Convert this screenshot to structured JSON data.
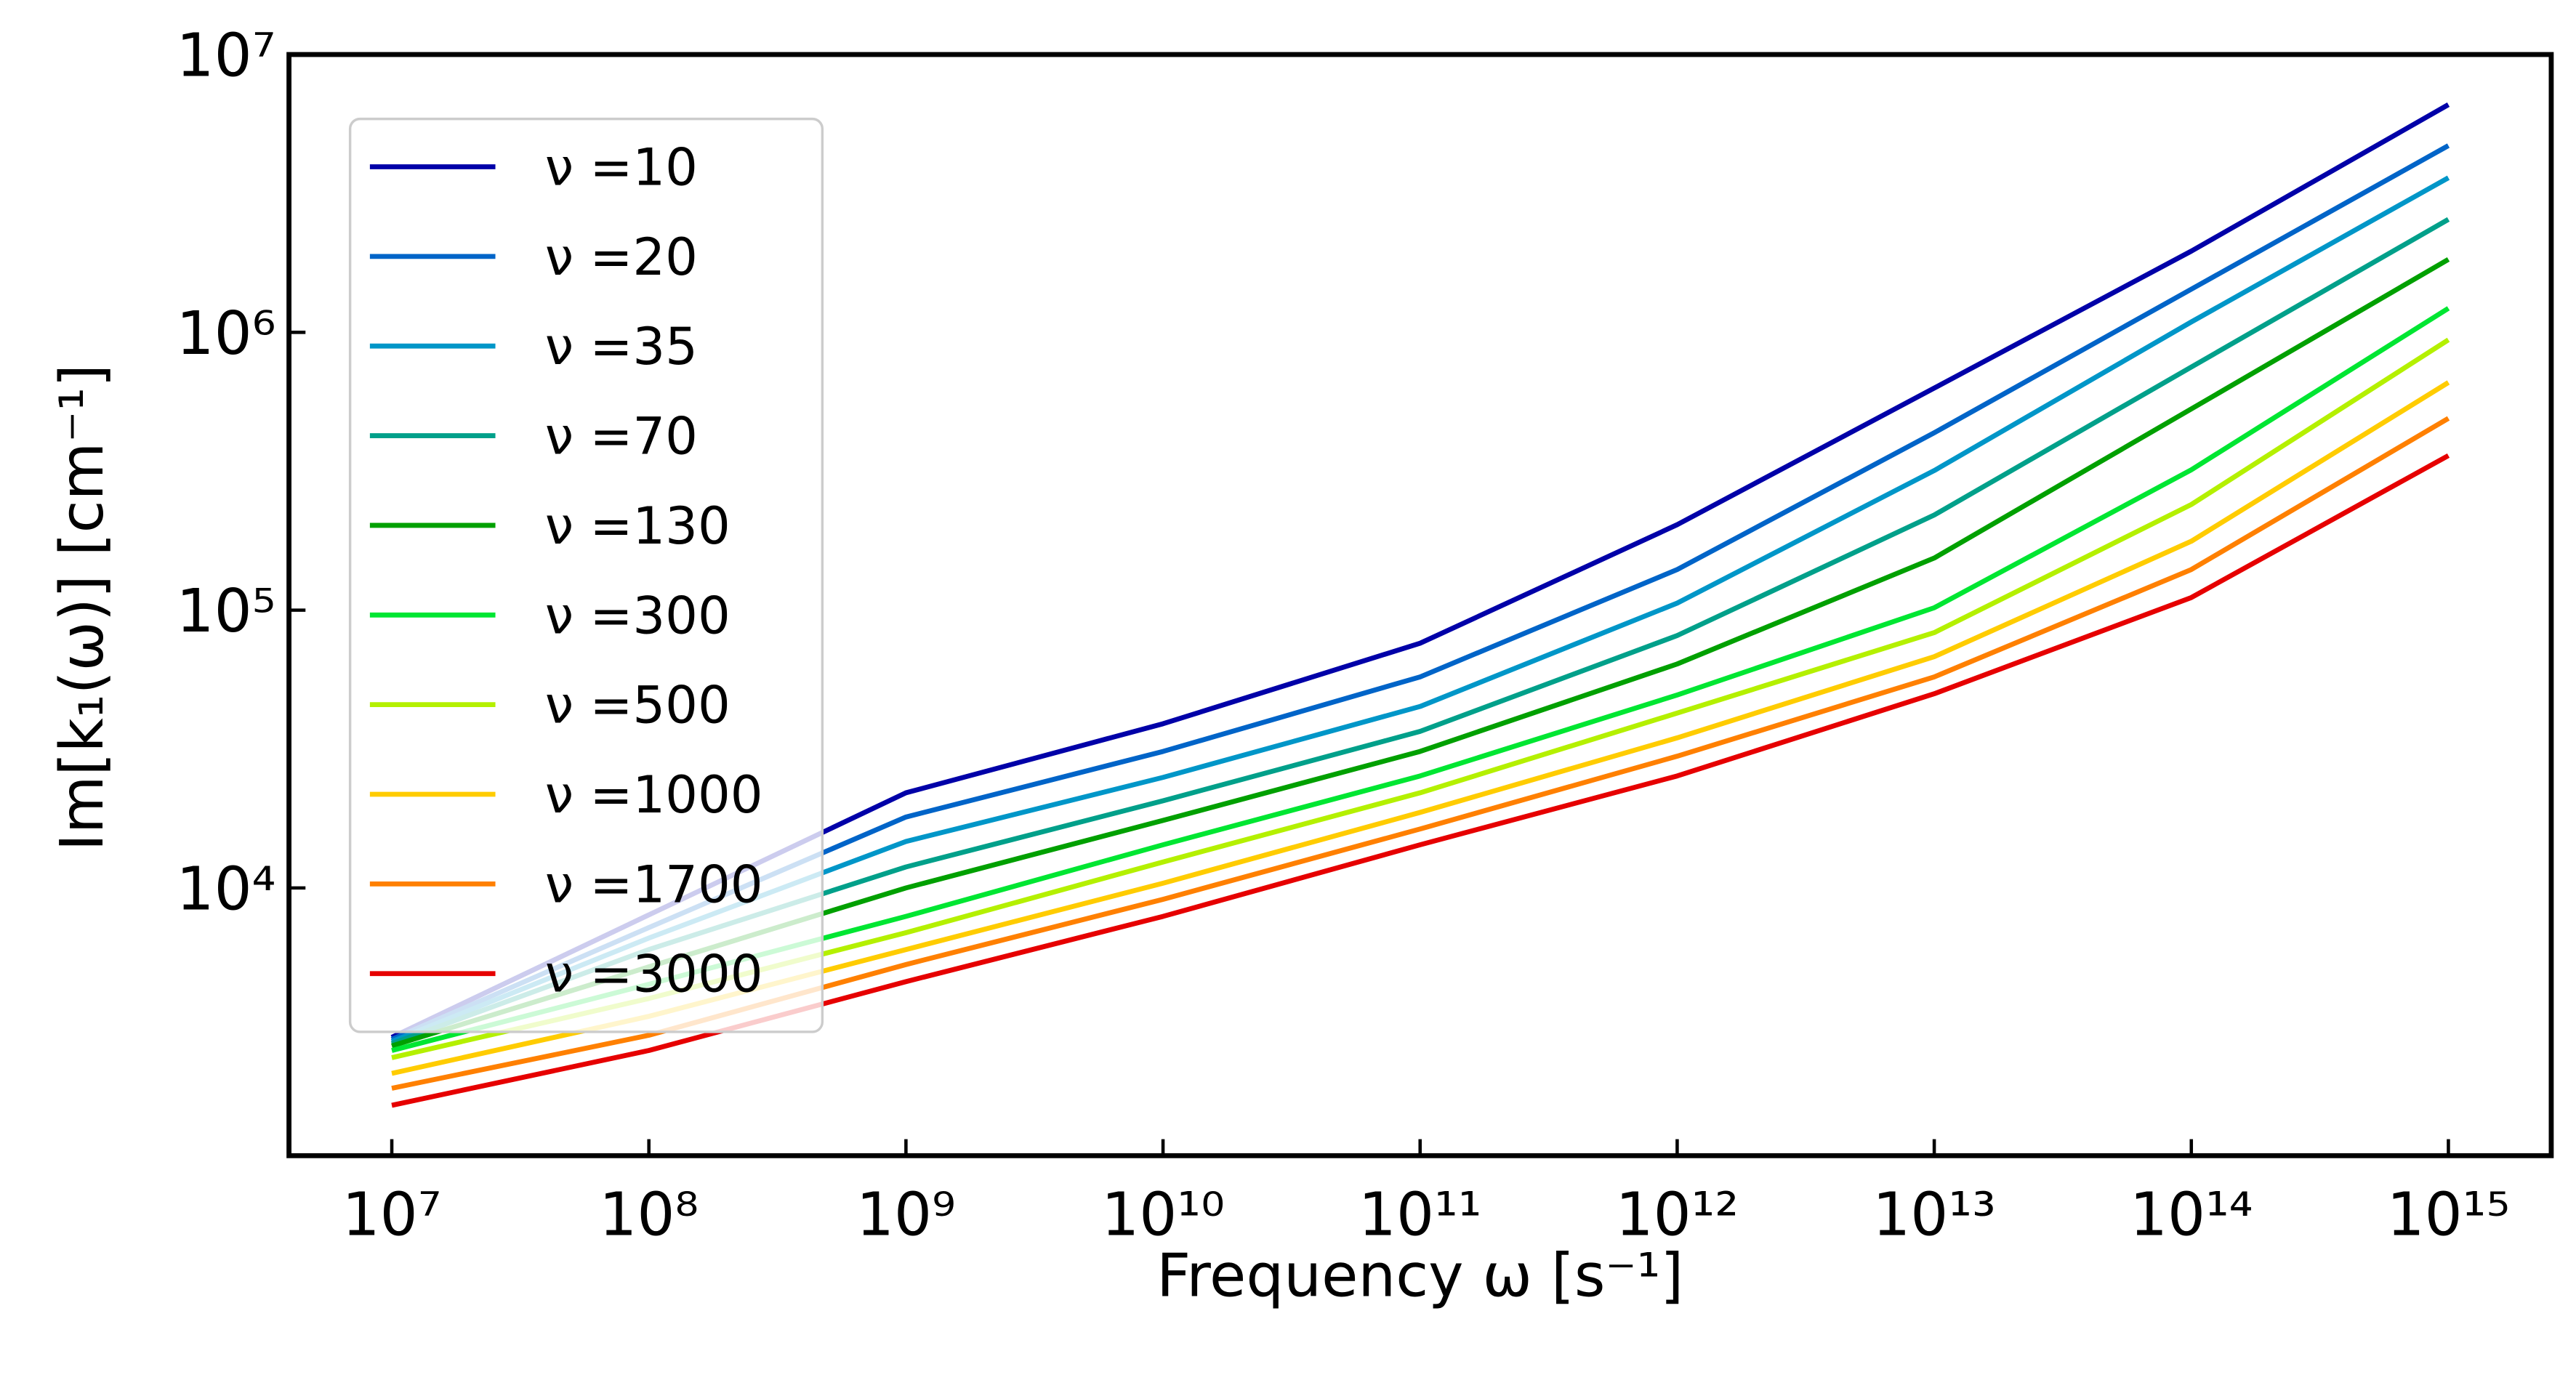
{
  "chart_data": {
    "type": "line",
    "x_label": "Frequency ω [s⁻¹]",
    "y_label": "Im[k₁(ω)]  [cm⁻¹]",
    "x_scale": "log",
    "y_scale": "log",
    "grid": false,
    "legend_position": "upper-left",
    "xlim": [
      3981071.7,
      2512000000000000
    ],
    "ylim": [
      1087,
      10000000
    ],
    "xticks": [
      {
        "value": 10000000,
        "label": "10⁷"
      },
      {
        "value": 100000000,
        "label": "10⁸"
      },
      {
        "value": 1000000000,
        "label": "10⁹"
      },
      {
        "value": 10000000000,
        "label": "10¹⁰"
      },
      {
        "value": 100000000000,
        "label": "10¹¹"
      },
      {
        "value": 1000000000000,
        "label": "10¹²"
      },
      {
        "value": 10000000000000,
        "label": "10¹³"
      },
      {
        "value": 100000000000000,
        "label": "10¹⁴"
      },
      {
        "value": 1000000000000000,
        "label": "10¹⁵"
      }
    ],
    "yticks": [
      {
        "value": 10000,
        "label": "10⁴"
      },
      {
        "value": 100000,
        "label": "10⁵"
      },
      {
        "value": 1000000,
        "label": "10⁶"
      },
      {
        "value": 10000000,
        "label": "10⁷"
      }
    ],
    "x": [
      10000000,
      100000000,
      1000000000,
      10000000000,
      100000000000,
      1000000000000,
      10000000000000,
      100000000000000,
      1000000000000000
    ],
    "series": [
      {
        "name": "ν =10",
        "color": "#0000a8",
        "values": [
          2900,
          8000,
          22000,
          39000,
          76000,
          203000,
          630000,
          1960000,
          6600000
        ]
      },
      {
        "name": "ν =20",
        "color": "#0064c8",
        "values": [
          2850,
          7200,
          18000,
          31000,
          57500,
          140000,
          435000,
          1430000,
          4700000
        ]
      },
      {
        "name": "ν =35",
        "color": "#0096c8",
        "values": [
          2800,
          6600,
          14700,
          25000,
          45000,
          106000,
          318000,
          1090000,
          3600000
        ]
      },
      {
        "name": "ν =70",
        "color": "#00a08a",
        "values": [
          2750,
          6000,
          11900,
          20600,
          36600,
          81000,
          220000,
          750000,
          2550000
        ]
      },
      {
        "name": "ν =130",
        "color": "#00a000",
        "values": [
          2700,
          5200,
          10000,
          17500,
          31000,
          64000,
          154000,
          530000,
          1830000
        ]
      },
      {
        "name": "ν =300",
        "color": "#00e632",
        "values": [
          2600,
          4500,
          7900,
          14300,
          25300,
          49500,
          102000,
          320000,
          1220000
        ]
      },
      {
        "name": "ν =500",
        "color": "#b4f000",
        "values": [
          2450,
          4000,
          6900,
          12400,
          22000,
          42600,
          83000,
          240000,
          940000
        ]
      },
      {
        "name": "ν =1000",
        "color": "#ffcc00",
        "values": [
          2150,
          3450,
          6000,
          10400,
          18700,
          34700,
          68000,
          177000,
          660000
        ]
      },
      {
        "name": "ν =1700",
        "color": "#ff8000",
        "values": [
          1900,
          2950,
          5300,
          9100,
          16300,
          29800,
          57500,
          140000,
          490000
        ]
      },
      {
        "name": "ν =3000",
        "color": "#e60000",
        "values": [
          1650,
          2600,
          4600,
          7900,
          14300,
          25300,
          50000,
          111000,
          360000
        ]
      }
    ]
  }
}
